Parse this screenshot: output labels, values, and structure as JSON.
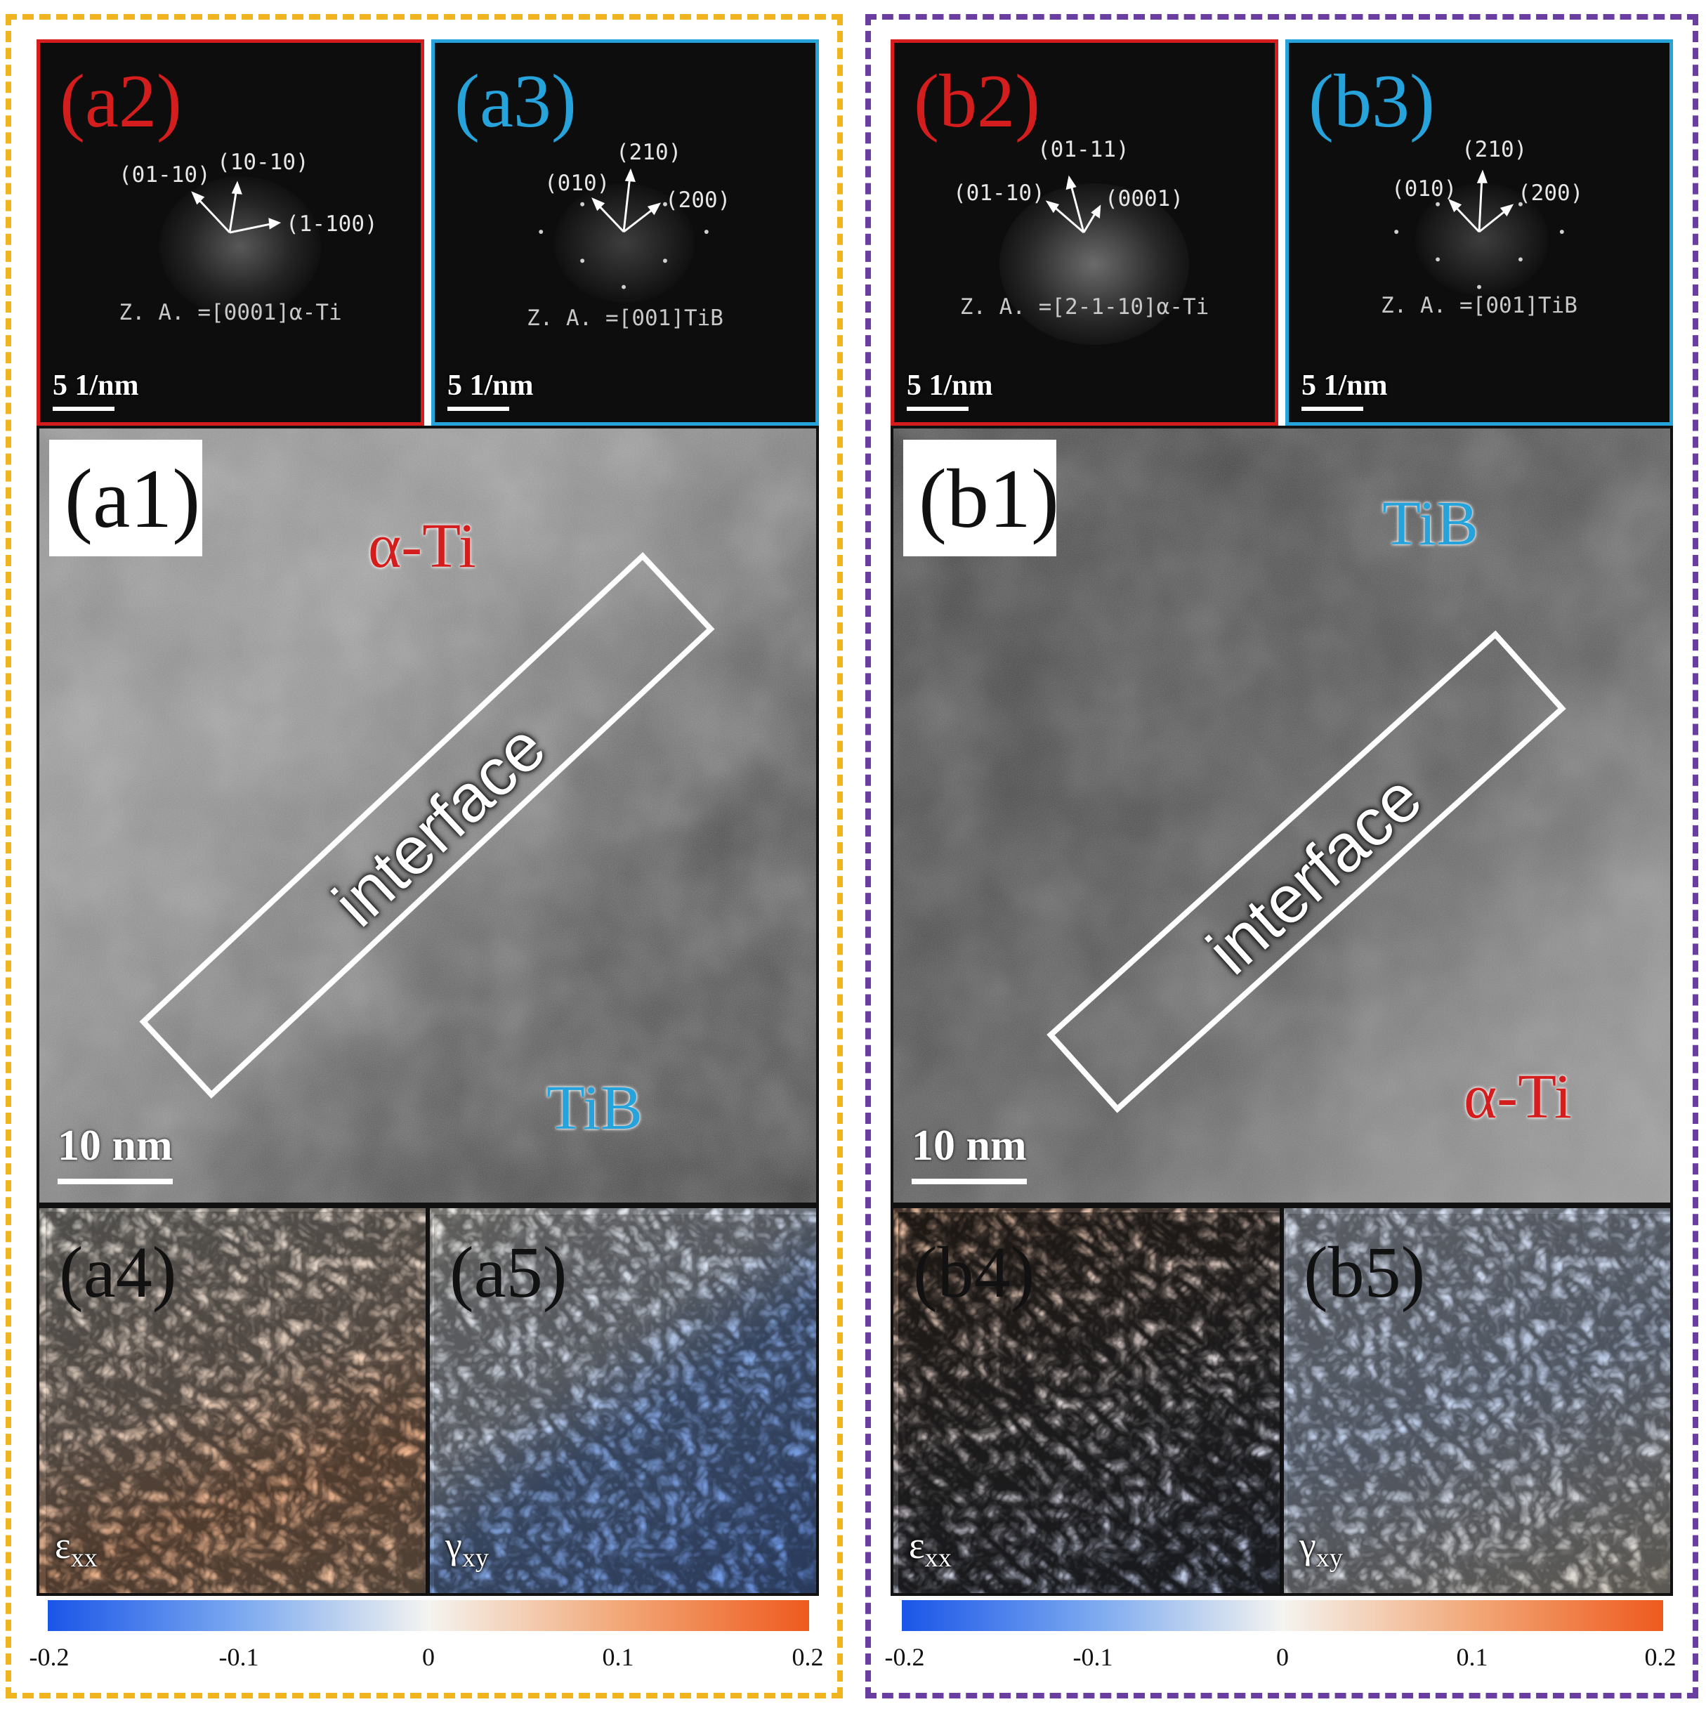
{
  "colors": {
    "frame_a": "#f0b41e",
    "frame_b": "#6a3ea0",
    "alpha_ti": "#d41e1e",
    "tib": "#27a3dc",
    "colormap": [
      "#1a55e8",
      "#7aa8f0",
      "#f4f4f0",
      "#f2a878",
      "#ee5a1e"
    ]
  },
  "group_a": {
    "fft_left": {
      "label": "(a2)",
      "indices": [
        "(01-10)",
        "(10-10)",
        "(1-100)"
      ],
      "zone_axis": "Z. A. =[0001]α-Ti",
      "scale_bar": "5 1/nm"
    },
    "fft_right": {
      "label": "(a3)",
      "indices": [
        "(010)",
        "(210)",
        "(200)"
      ],
      "zone_axis": "Z. A. =[001]TiB",
      "scale_bar": "5 1/nm"
    },
    "hrtem": {
      "label": "(a1)",
      "phase_top": "α-Ti",
      "phase_bottom": "TiB",
      "interface": "interface",
      "scale_bar": "10 nm"
    },
    "strain_left": {
      "label": "(a4)",
      "component": "ε",
      "sub": "xx"
    },
    "strain_right": {
      "label": "(a5)",
      "component": "γ",
      "sub": "xy"
    },
    "colorbar_ticks": [
      "-0.2",
      "-0.1",
      "0",
      "0.1",
      "0.2"
    ]
  },
  "group_b": {
    "fft_left": {
      "label": "(b2)",
      "indices": [
        "(01-11)",
        "(01-10)",
        "(0001)"
      ],
      "zone_axis": "Z. A. =[2-1-10]α-Ti",
      "scale_bar": "5 1/nm"
    },
    "fft_right": {
      "label": "(b3)",
      "indices": [
        "(210)",
        "(010)",
        "(200)"
      ],
      "zone_axis": "Z. A. =[001]TiB",
      "scale_bar": "5 1/nm"
    },
    "hrtem": {
      "label": "(b1)",
      "phase_top": "TiB",
      "phase_bottom": "α-Ti",
      "interface": "interface",
      "scale_bar": "10 nm"
    },
    "strain_left": {
      "label": "(b4)",
      "component": "ε",
      "sub": "xx"
    },
    "strain_right": {
      "label": "(b5)",
      "component": "γ",
      "sub": "xy"
    },
    "colorbar_ticks": [
      "-0.2",
      "-0.1",
      "0",
      "0.1",
      "0.2"
    ]
  }
}
